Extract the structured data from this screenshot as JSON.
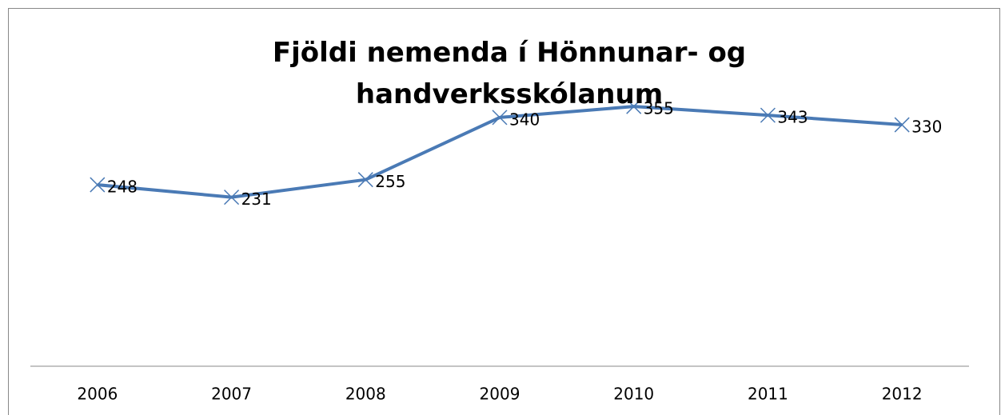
{
  "chart_data": {
    "type": "line",
    "title": "Fjöldi nemenda í Hönnunar- og handverksskólanum",
    "categories": [
      "2006",
      "2007",
      "2008",
      "2009",
      "2010",
      "2011",
      "2012"
    ],
    "values": [
      248,
      231,
      255,
      340,
      355,
      343,
      330
    ],
    "color": "#4a7ab5",
    "ylim": [
      0,
      400
    ]
  }
}
